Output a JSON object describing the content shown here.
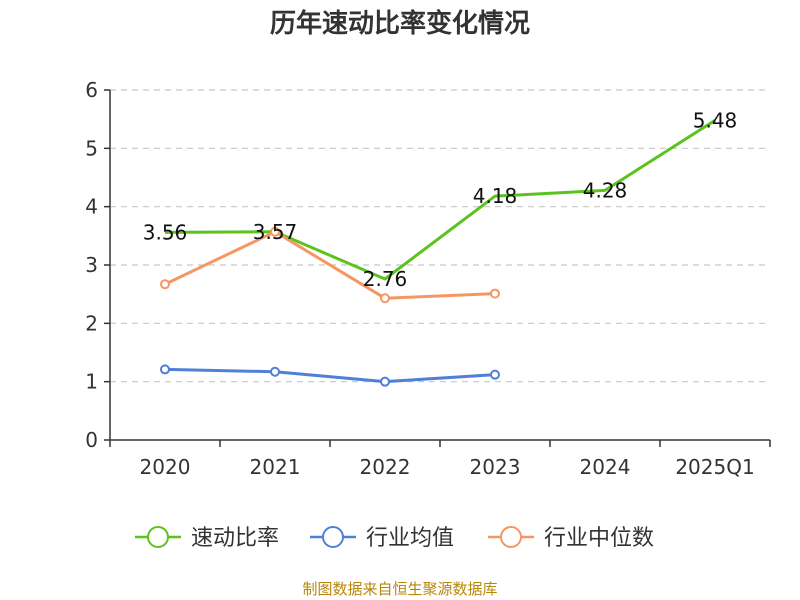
{
  "chart_data": {
    "type": "line",
    "title": "历年速动比率变化情况",
    "categories": [
      "2020",
      "2021",
      "2022",
      "2023",
      "2024",
      "2025Q1"
    ],
    "ylim": [
      0,
      6
    ],
    "yticks": [
      0,
      1,
      2,
      3,
      4,
      5,
      6
    ],
    "grid": true,
    "legend_position": "bottom",
    "series": [
      {
        "name": "速动比率",
        "color": "#5cc31e",
        "values": [
          3.56,
          3.57,
          2.76,
          4.18,
          4.28,
          5.48
        ],
        "labels": [
          "3.56",
          "3.57",
          "2.76",
          "4.18",
          "4.28",
          "5.48"
        ],
        "show_labels": true,
        "marker": "none"
      },
      {
        "name": "行业均值",
        "color": "#4f7fd6",
        "values": [
          1.21,
          1.17,
          1.0,
          1.12,
          null,
          null
        ],
        "show_labels": false,
        "marker": "circle"
      },
      {
        "name": "行业中位数",
        "color": "#f59762",
        "values": [
          2.67,
          3.57,
          2.43,
          2.51,
          null,
          null
        ],
        "show_labels": false,
        "marker": "circle"
      }
    ]
  },
  "source": "制图数据来自恒生聚源数据库"
}
